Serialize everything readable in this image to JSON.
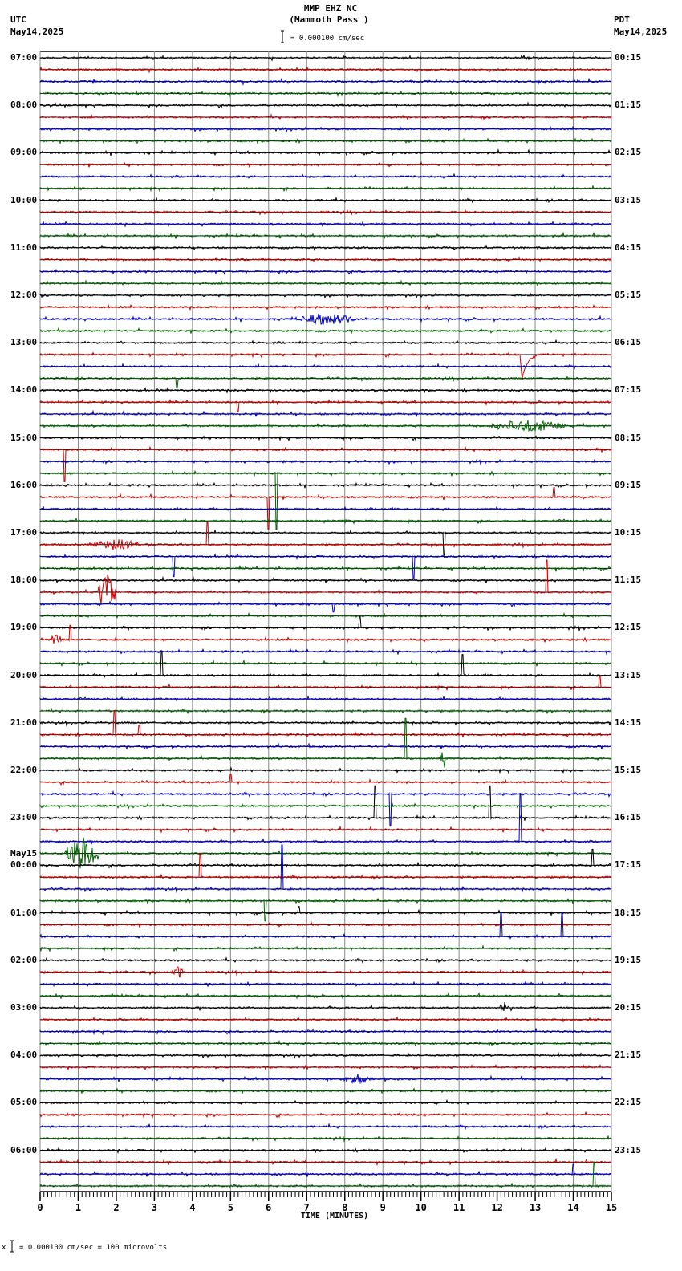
{
  "header": {
    "station": "MMP EHZ NC",
    "location": "(Mammoth Pass )",
    "left_tz": "UTC",
    "left_date": "May14,2025",
    "right_tz": "PDT",
    "right_date": "May14,2025",
    "scale_text": "= 0.000100 cm/sec"
  },
  "footer": {
    "scale_text": "= 0.000100 cm/sec =     100 microvolts",
    "marker": "x"
  },
  "chart_data": {
    "type": "line",
    "title": "MMP EHZ NC (Mammoth Pass) helicorder",
    "xlabel": "TIME (MINUTES)",
    "ylabel": "",
    "xlim": [
      0,
      15
    ],
    "x_ticks": [
      "0",
      "1",
      "2",
      "3",
      "4",
      "5",
      "6",
      "7",
      "8",
      "9",
      "10",
      "11",
      "12",
      "13",
      "14",
      "15"
    ],
    "rows_per_hour": 4,
    "row_minutes": 15,
    "n_rows": 96,
    "trace_colors": [
      "#000000",
      "#cc0000",
      "#0000cc",
      "#006600"
    ],
    "grid": true,
    "left_labels": [
      {
        "row": 0,
        "text": "07:00"
      },
      {
        "row": 4,
        "text": "08:00"
      },
      {
        "row": 8,
        "text": "09:00"
      },
      {
        "row": 12,
        "text": "10:00"
      },
      {
        "row": 16,
        "text": "11:00"
      },
      {
        "row": 20,
        "text": "12:00"
      },
      {
        "row": 24,
        "text": "13:00"
      },
      {
        "row": 28,
        "text": "14:00"
      },
      {
        "row": 32,
        "text": "15:00"
      },
      {
        "row": 36,
        "text": "16:00"
      },
      {
        "row": 40,
        "text": "17:00"
      },
      {
        "row": 44,
        "text": "18:00"
      },
      {
        "row": 48,
        "text": "19:00"
      },
      {
        "row": 52,
        "text": "20:00"
      },
      {
        "row": 56,
        "text": "21:00"
      },
      {
        "row": 60,
        "text": "22:00"
      },
      {
        "row": 64,
        "text": "23:00"
      },
      {
        "row": 68,
        "text": "00:00",
        "date": "May15"
      },
      {
        "row": 72,
        "text": "01:00"
      },
      {
        "row": 76,
        "text": "02:00"
      },
      {
        "row": 80,
        "text": "03:00"
      },
      {
        "row": 84,
        "text": "04:00"
      },
      {
        "row": 88,
        "text": "05:00"
      },
      {
        "row": 92,
        "text": "06:00"
      }
    ],
    "right_labels": [
      {
        "row": 0,
        "text": "00:15"
      },
      {
        "row": 4,
        "text": "01:15"
      },
      {
        "row": 8,
        "text": "02:15"
      },
      {
        "row": 12,
        "text": "03:15"
      },
      {
        "row": 16,
        "text": "04:15"
      },
      {
        "row": 20,
        "text": "05:15"
      },
      {
        "row": 24,
        "text": "06:15"
      },
      {
        "row": 28,
        "text": "07:15"
      },
      {
        "row": 32,
        "text": "08:15"
      },
      {
        "row": 36,
        "text": "09:15"
      },
      {
        "row": 40,
        "text": "10:15"
      },
      {
        "row": 44,
        "text": "11:15"
      },
      {
        "row": 48,
        "text": "12:15"
      },
      {
        "row": 52,
        "text": "13:15"
      },
      {
        "row": 56,
        "text": "14:15"
      },
      {
        "row": 60,
        "text": "15:15"
      },
      {
        "row": 64,
        "text": "16:15"
      },
      {
        "row": 68,
        "text": "17:15"
      },
      {
        "row": 72,
        "text": "18:15"
      },
      {
        "row": 76,
        "text": "19:15"
      },
      {
        "row": 80,
        "text": "20:15"
      },
      {
        "row": 84,
        "text": "21:15"
      },
      {
        "row": 88,
        "text": "22:15"
      },
      {
        "row": 92,
        "text": "23:15"
      }
    ],
    "events": [
      {
        "row": 22,
        "minute": 7.5,
        "type": "burst",
        "dur": 1.6,
        "amp": 5
      },
      {
        "row": 25,
        "minute": 12.6,
        "type": "step",
        "amp": -48
      },
      {
        "row": 31,
        "minute": 12.8,
        "type": "burst",
        "dur": 2.0,
        "amp": 6
      },
      {
        "row": 29,
        "minute": 5.2,
        "type": "spike",
        "amp": -12
      },
      {
        "row": 27,
        "minute": 3.6,
        "type": "spike",
        "amp": -12
      },
      {
        "row": 33,
        "minute": 0.65,
        "type": "spike",
        "amp": -40
      },
      {
        "row": 35,
        "minute": 6.2,
        "type": "spike",
        "amp": -70
      },
      {
        "row": 37,
        "minute": 6.0,
        "type": "spike",
        "amp": -40
      },
      {
        "row": 37,
        "minute": 13.5,
        "type": "spike",
        "amp": 12
      },
      {
        "row": 41,
        "minute": 2.0,
        "type": "burst",
        "dur": 1.2,
        "amp": 5
      },
      {
        "row": 41,
        "minute": 4.4,
        "type": "spike",
        "amp": 28
      },
      {
        "row": 40,
        "minute": 10.6,
        "type": "spike",
        "amp": -28
      },
      {
        "row": 42,
        "minute": 3.5,
        "type": "spike",
        "amp": -25
      },
      {
        "row": 42,
        "minute": 9.8,
        "type": "spike",
        "amp": -28
      },
      {
        "row": 45,
        "minute": 1.75,
        "type": "burst",
        "dur": 0.5,
        "amp": 18
      },
      {
        "row": 45,
        "minute": 13.3,
        "type": "spike",
        "amp": 40
      },
      {
        "row": 46,
        "minute": 7.7,
        "type": "spike",
        "amp": -10
      },
      {
        "row": 48,
        "minute": 8.4,
        "type": "spike",
        "amp": 14
      },
      {
        "row": 49,
        "minute": 0.4,
        "type": "burst",
        "dur": 0.3,
        "amp": 6
      },
      {
        "row": 49,
        "minute": 0.8,
        "type": "spike",
        "amp": 18
      },
      {
        "row": 52,
        "minute": 3.2,
        "type": "spike",
        "amp": 30
      },
      {
        "row": 52,
        "minute": 11.1,
        "type": "spike",
        "amp": 26
      },
      {
        "row": 53,
        "minute": 14.7,
        "type": "spike",
        "amp": 14
      },
      {
        "row": 57,
        "minute": 1.95,
        "type": "spike",
        "amp": 30
      },
      {
        "row": 57,
        "minute": 2.6,
        "type": "spike",
        "amp": 12
      },
      {
        "row": 59,
        "minute": 10.6,
        "type": "burst",
        "dur": 0.2,
        "amp": 10
      },
      {
        "row": 59,
        "minute": 9.6,
        "type": "spike",
        "amp": 50
      },
      {
        "row": 61,
        "minute": 5.0,
        "type": "spike",
        "amp": 10
      },
      {
        "row": 62,
        "minute": 9.2,
        "type": "spike",
        "amp": -40
      },
      {
        "row": 64,
        "minute": 8.8,
        "type": "spike",
        "amp": 40
      },
      {
        "row": 64,
        "minute": 11.8,
        "type": "spike",
        "amp": 40
      },
      {
        "row": 66,
        "minute": 12.6,
        "type": "spike",
        "amp": 60
      },
      {
        "row": 67,
        "minute": 1.1,
        "type": "burst",
        "dur": 0.9,
        "amp": 16
      },
      {
        "row": 68,
        "minute": 14.5,
        "type": "spike",
        "amp": 20
      },
      {
        "row": 69,
        "minute": 4.2,
        "type": "spike",
        "amp": 30
      },
      {
        "row": 70,
        "minute": 6.35,
        "type": "spike",
        "amp": 55
      },
      {
        "row": 71,
        "minute": 5.9,
        "type": "spike",
        "amp": -25
      },
      {
        "row": 72,
        "minute": 6.8,
        "type": "spike",
        "amp": 8
      },
      {
        "row": 74,
        "minute": 13.7,
        "type": "spike",
        "amp": 30
      },
      {
        "row": 74,
        "minute": 12.1,
        "type": "spike",
        "amp": 30
      },
      {
        "row": 77,
        "minute": 3.6,
        "type": "burst",
        "dur": 0.3,
        "amp": 7
      },
      {
        "row": 80,
        "minute": 12.2,
        "type": "burst",
        "dur": 0.4,
        "amp": 5
      },
      {
        "row": 86,
        "minute": 8.3,
        "type": "burst",
        "dur": 0.8,
        "amp": 4
      },
      {
        "row": 94,
        "minute": 14.0,
        "type": "spike",
        "amp": 12
      },
      {
        "row": 95,
        "minute": 14.55,
        "type": "spike",
        "amp": 30
      }
    ]
  }
}
